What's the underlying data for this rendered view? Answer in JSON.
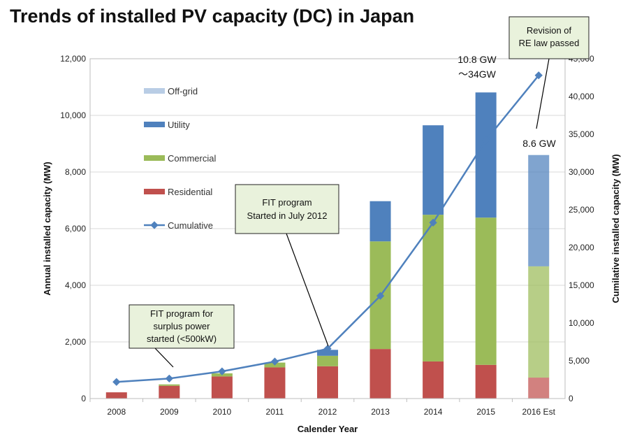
{
  "chart_data": {
    "type": "bar",
    "stacked": true,
    "title": "Trends of installed PV capacity (DC) in Japan",
    "xlabel": "Calender Year",
    "ylabel": "Annual installed capacity (MW)",
    "y2label": "Cumilative installed capacity (MW)",
    "ylim": [
      0,
      12000
    ],
    "y2lim": [
      0,
      45000
    ],
    "yticks": [
      "0",
      "2,000",
      "4,000",
      "6,000",
      "8,000",
      "10,000",
      "12,000"
    ],
    "y2ticks": [
      "0",
      "5,000",
      "10,000",
      "15,000",
      "20,000",
      "25,000",
      "30,000",
      "35,000",
      "40,000",
      "45,000"
    ],
    "categories": [
      "2008",
      "2009",
      "2010",
      "2011",
      "2012",
      "2013",
      "2014",
      "2015",
      "2016 Est"
    ],
    "grid": true,
    "legend_position": "left inside",
    "series": [
      {
        "name": "Residential",
        "kind": "bar",
        "color": "#c0504d",
        "values": [
          220,
          450,
          780,
          1100,
          1140,
          1750,
          1310,
          1190,
          740
        ]
      },
      {
        "name": "Commercial",
        "kind": "bar",
        "color": "#9bbb59",
        "values": [
          0,
          50,
          110,
          170,
          370,
          3800,
          5180,
          5200,
          3930
        ]
      },
      {
        "name": "Utility",
        "kind": "bar",
        "color": "#4f81bd",
        "values": [
          0,
          0,
          0,
          0,
          210,
          1420,
          3160,
          4420,
          3930
        ]
      },
      {
        "name": "Off-grid",
        "kind": "bar",
        "color": "#b9cde5",
        "values": [
          0,
          0,
          0,
          0,
          0,
          0,
          0,
          0,
          0
        ]
      },
      {
        "name": "Cumulative",
        "kind": "line",
        "axis": "right",
        "color": "#4f81bd",
        "values": [
          2200,
          2650,
          3600,
          4900,
          6600,
          13600,
          23300,
          34200,
          42800
        ]
      }
    ],
    "annotations": [
      {
        "text": [
          "FIT program for",
          "surplus power",
          "started (<500kW)"
        ]
      },
      {
        "text": [
          "FIT program",
          "Started in July 2012"
        ]
      },
      {
        "text": [
          "Revision of",
          "RE law passed"
        ]
      }
    ],
    "data_labels": [
      "10.8 GW",
      "〜34GW",
      "8.6 GW"
    ]
  }
}
